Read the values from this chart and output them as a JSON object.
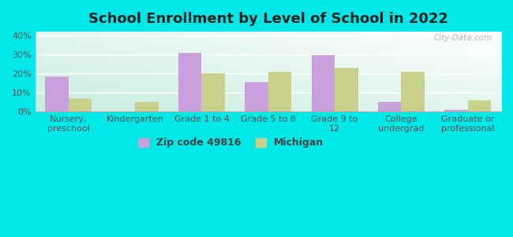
{
  "title": "School Enrollment by Level of School in 2022",
  "categories": [
    "Nursery,\npreschool",
    "Kindergarten",
    "Grade 1 to 4",
    "Grade 5 to 8",
    "Grade 9 to\n12",
    "College\nundergrad",
    "Graduate or\nprofessional"
  ],
  "zip_values": [
    18.5,
    0,
    31.0,
    15.5,
    29.5,
    5.0,
    1.0
  ],
  "mi_values": [
    6.5,
    5.0,
    20.0,
    21.0,
    23.0,
    21.0,
    6.0
  ],
  "zip_color": "#c9a0dc",
  "mi_color": "#c8d08c",
  "background_color": "#00e8e8",
  "ylim": [
    0,
    42
  ],
  "yticks": [
    0,
    10,
    20,
    30,
    40
  ],
  "ytick_labels": [
    "0%",
    "10%",
    "20%",
    "30%",
    "40%"
  ],
  "bar_width": 0.35,
  "legend_zip_label": "Zip code 49816",
  "legend_mi_label": "Michigan",
  "watermark": "City-Data.com",
  "title_fontsize": 13,
  "tick_fontsize": 8,
  "legend_fontsize": 9,
  "grad_colors": [
    "#d0ede0",
    "#f0f8f0",
    "#f8faf8",
    "#ffffff"
  ],
  "grid_color": "#dddddd"
}
